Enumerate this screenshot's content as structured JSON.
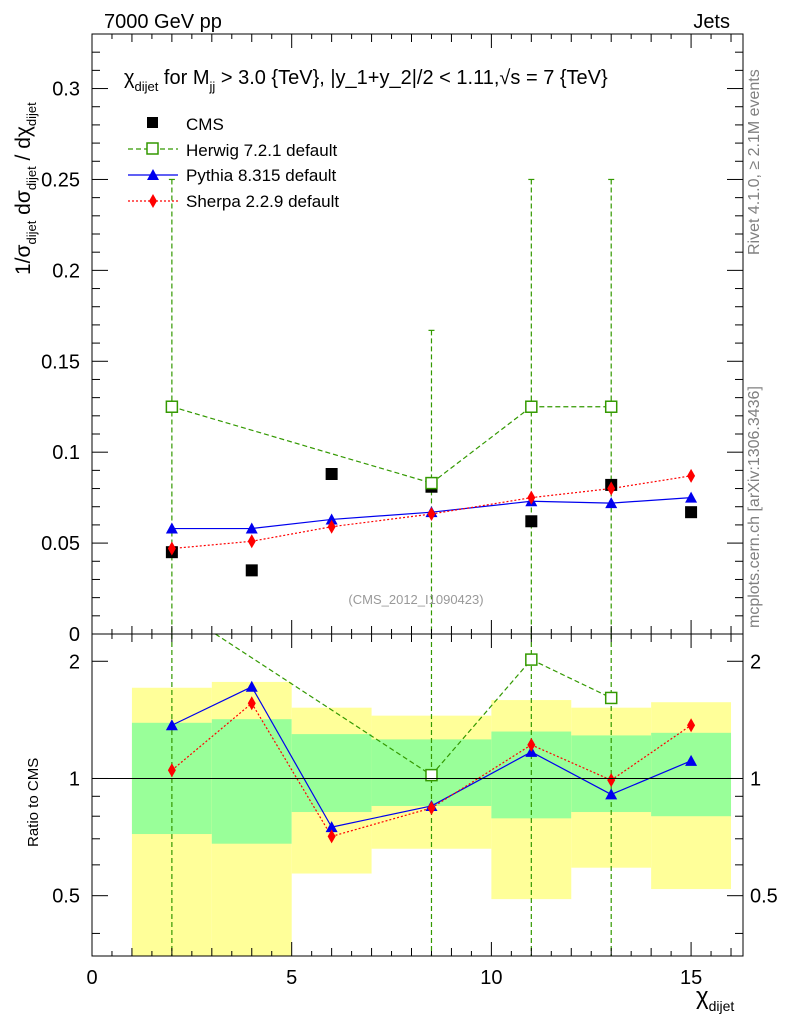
{
  "header": {
    "left": "7000 GeV pp",
    "right": "Jets"
  },
  "side_labels": {
    "rivet": "Rivet 4.1.0, ≥ 2.1M events",
    "mcplots": "mcplots.cern.ch [arXiv:1306.3436]"
  },
  "chart_data": {
    "type": "scatter",
    "title": "χdijet for Mjj > 3.0 {TeV}, |y_1+y_2|/2 < 1.11, √s = 7 {TeV}",
    "title_parts": {
      "chi": "χ",
      "chi_sub": "dijet",
      "mid": "for M",
      "m_sub": "jj",
      "rest": "> 3.0 {TeV}, |y_1+y_2|/2 < 1.11,",
      "sqrt": "√s",
      "end": "= 7 {TeV}"
    },
    "xlabel": "χdijet",
    "xlabel_parts": {
      "chi": "χ",
      "sub": "dijet"
    },
    "ylabel": "1/σdijet dσdijet / dχdijet",
    "ylabel_parts": {
      "a": "1/σ",
      "a_sub": "dijet",
      "b": "dσ",
      "b_sub": "dijet",
      "c": "/ dχ",
      "c_sub": "dijet"
    },
    "ratio_ylabel": "Ratio to CMS",
    "watermark": "(CMS_2012_I1090423)",
    "xlim": [
      0,
      16.3
    ],
    "ylim": [
      0,
      0.33
    ],
    "ratio_ylim": [
      0.35,
      2.35
    ],
    "xticks": [
      0,
      5,
      10,
      15
    ],
    "xtick_labels": [
      "0",
      "5",
      "10",
      "15"
    ],
    "yticks": [
      0.05,
      0.1,
      0.15,
      0.2,
      0.25,
      0.3
    ],
    "ytick_labels": [
      "0.05",
      "0.1",
      "0.15",
      "0.2",
      "0.25",
      "0.3"
    ],
    "y_zero_label": "0",
    "ratio_yticks": [
      0.5,
      1,
      2
    ],
    "ratio_ytick_labels": [
      "0.5",
      "1",
      "2"
    ],
    "bins": [
      {
        "lo": 1,
        "hi": 3,
        "y1lo": 0.72,
        "y1hi": 1.39,
        "y2lo": 0.25,
        "y2hi": 1.71
      },
      {
        "lo": 3,
        "hi": 5,
        "y1lo": 0.68,
        "y1hi": 1.42,
        "y2lo": 0.25,
        "y2hi": 1.77
      },
      {
        "lo": 5,
        "hi": 7,
        "y1lo": 0.82,
        "y1hi": 1.3,
        "y2lo": 0.57,
        "y2hi": 1.52
      },
      {
        "lo": 7,
        "hi": 10,
        "y1lo": 0.85,
        "y1hi": 1.26,
        "y2lo": 0.66,
        "y2hi": 1.45
      },
      {
        "lo": 10,
        "hi": 12,
        "y1lo": 0.79,
        "y1hi": 1.32,
        "y2lo": 0.49,
        "y2hi": 1.59
      },
      {
        "lo": 12,
        "hi": 14,
        "y1lo": 0.82,
        "y1hi": 1.29,
        "y2lo": 0.59,
        "y2hi": 1.52
      },
      {
        "lo": 14,
        "hi": 16,
        "y1lo": 0.8,
        "y1hi": 1.31,
        "y2lo": 0.52,
        "y2hi": 1.57
      }
    ],
    "series": [
      {
        "name": "CMS",
        "key": "cms",
        "color": "#000000",
        "marker": "square-filled",
        "line": "none",
        "x": [
          2,
          4,
          6,
          8.5,
          11,
          13,
          15
        ],
        "y": [
          0.045,
          0.035,
          0.088,
          0.081,
          0.062,
          0.082,
          0.067
        ]
      },
      {
        "name": "Herwig 7.2.1 default",
        "key": "herwig",
        "color": "#339900",
        "marker": "square-open",
        "line": "dashed",
        "x": [
          2,
          8.5,
          11,
          13
        ],
        "y": [
          0.125,
          0.083,
          0.125,
          0.125
        ],
        "err_up": [
          0.25,
          0.167,
          0.25,
          0.25
        ],
        "err_lo": [
          0,
          0,
          0,
          0
        ],
        "ratio": [
          2.78,
          1.02,
          2.02,
          1.61
        ]
      },
      {
        "name": "Pythia 8.315 default",
        "key": "pythia",
        "color": "#0000ee",
        "marker": "triangle",
        "line": "solid",
        "x": [
          2,
          4,
          6,
          8.5,
          11,
          13,
          15
        ],
        "y": [
          0.058,
          0.058,
          0.063,
          0.067,
          0.073,
          0.072,
          0.075
        ],
        "ratio": [
          1.37,
          1.72,
          0.75,
          0.85,
          1.17,
          0.91,
          1.11
        ]
      },
      {
        "name": "Sherpa 2.2.9 default",
        "key": "sherpa",
        "color": "#ff0000",
        "marker": "diamond",
        "line": "dotted",
        "x": [
          2,
          4,
          6,
          8.5,
          11,
          13,
          15
        ],
        "y": [
          0.047,
          0.051,
          0.059,
          0.066,
          0.075,
          0.08,
          0.087
        ],
        "y_err": [
          0.003,
          0.002,
          0.002,
          0.002,
          0.002,
          0.002,
          0.003
        ],
        "ratio": [
          1.05,
          1.56,
          0.71,
          0.84,
          1.22,
          0.99,
          1.37
        ],
        "ratio_err": [
          0.04,
          0.04,
          0.02,
          0.02,
          0.03,
          0.02,
          0.04
        ]
      }
    ],
    "legend": [
      "CMS",
      "Herwig 7.2.1 default",
      "Pythia 8.315 default",
      "Sherpa 2.2.9 default"
    ],
    "colors": {
      "band_inner": "#99ff99",
      "band_outer": "#ffff99"
    }
  }
}
